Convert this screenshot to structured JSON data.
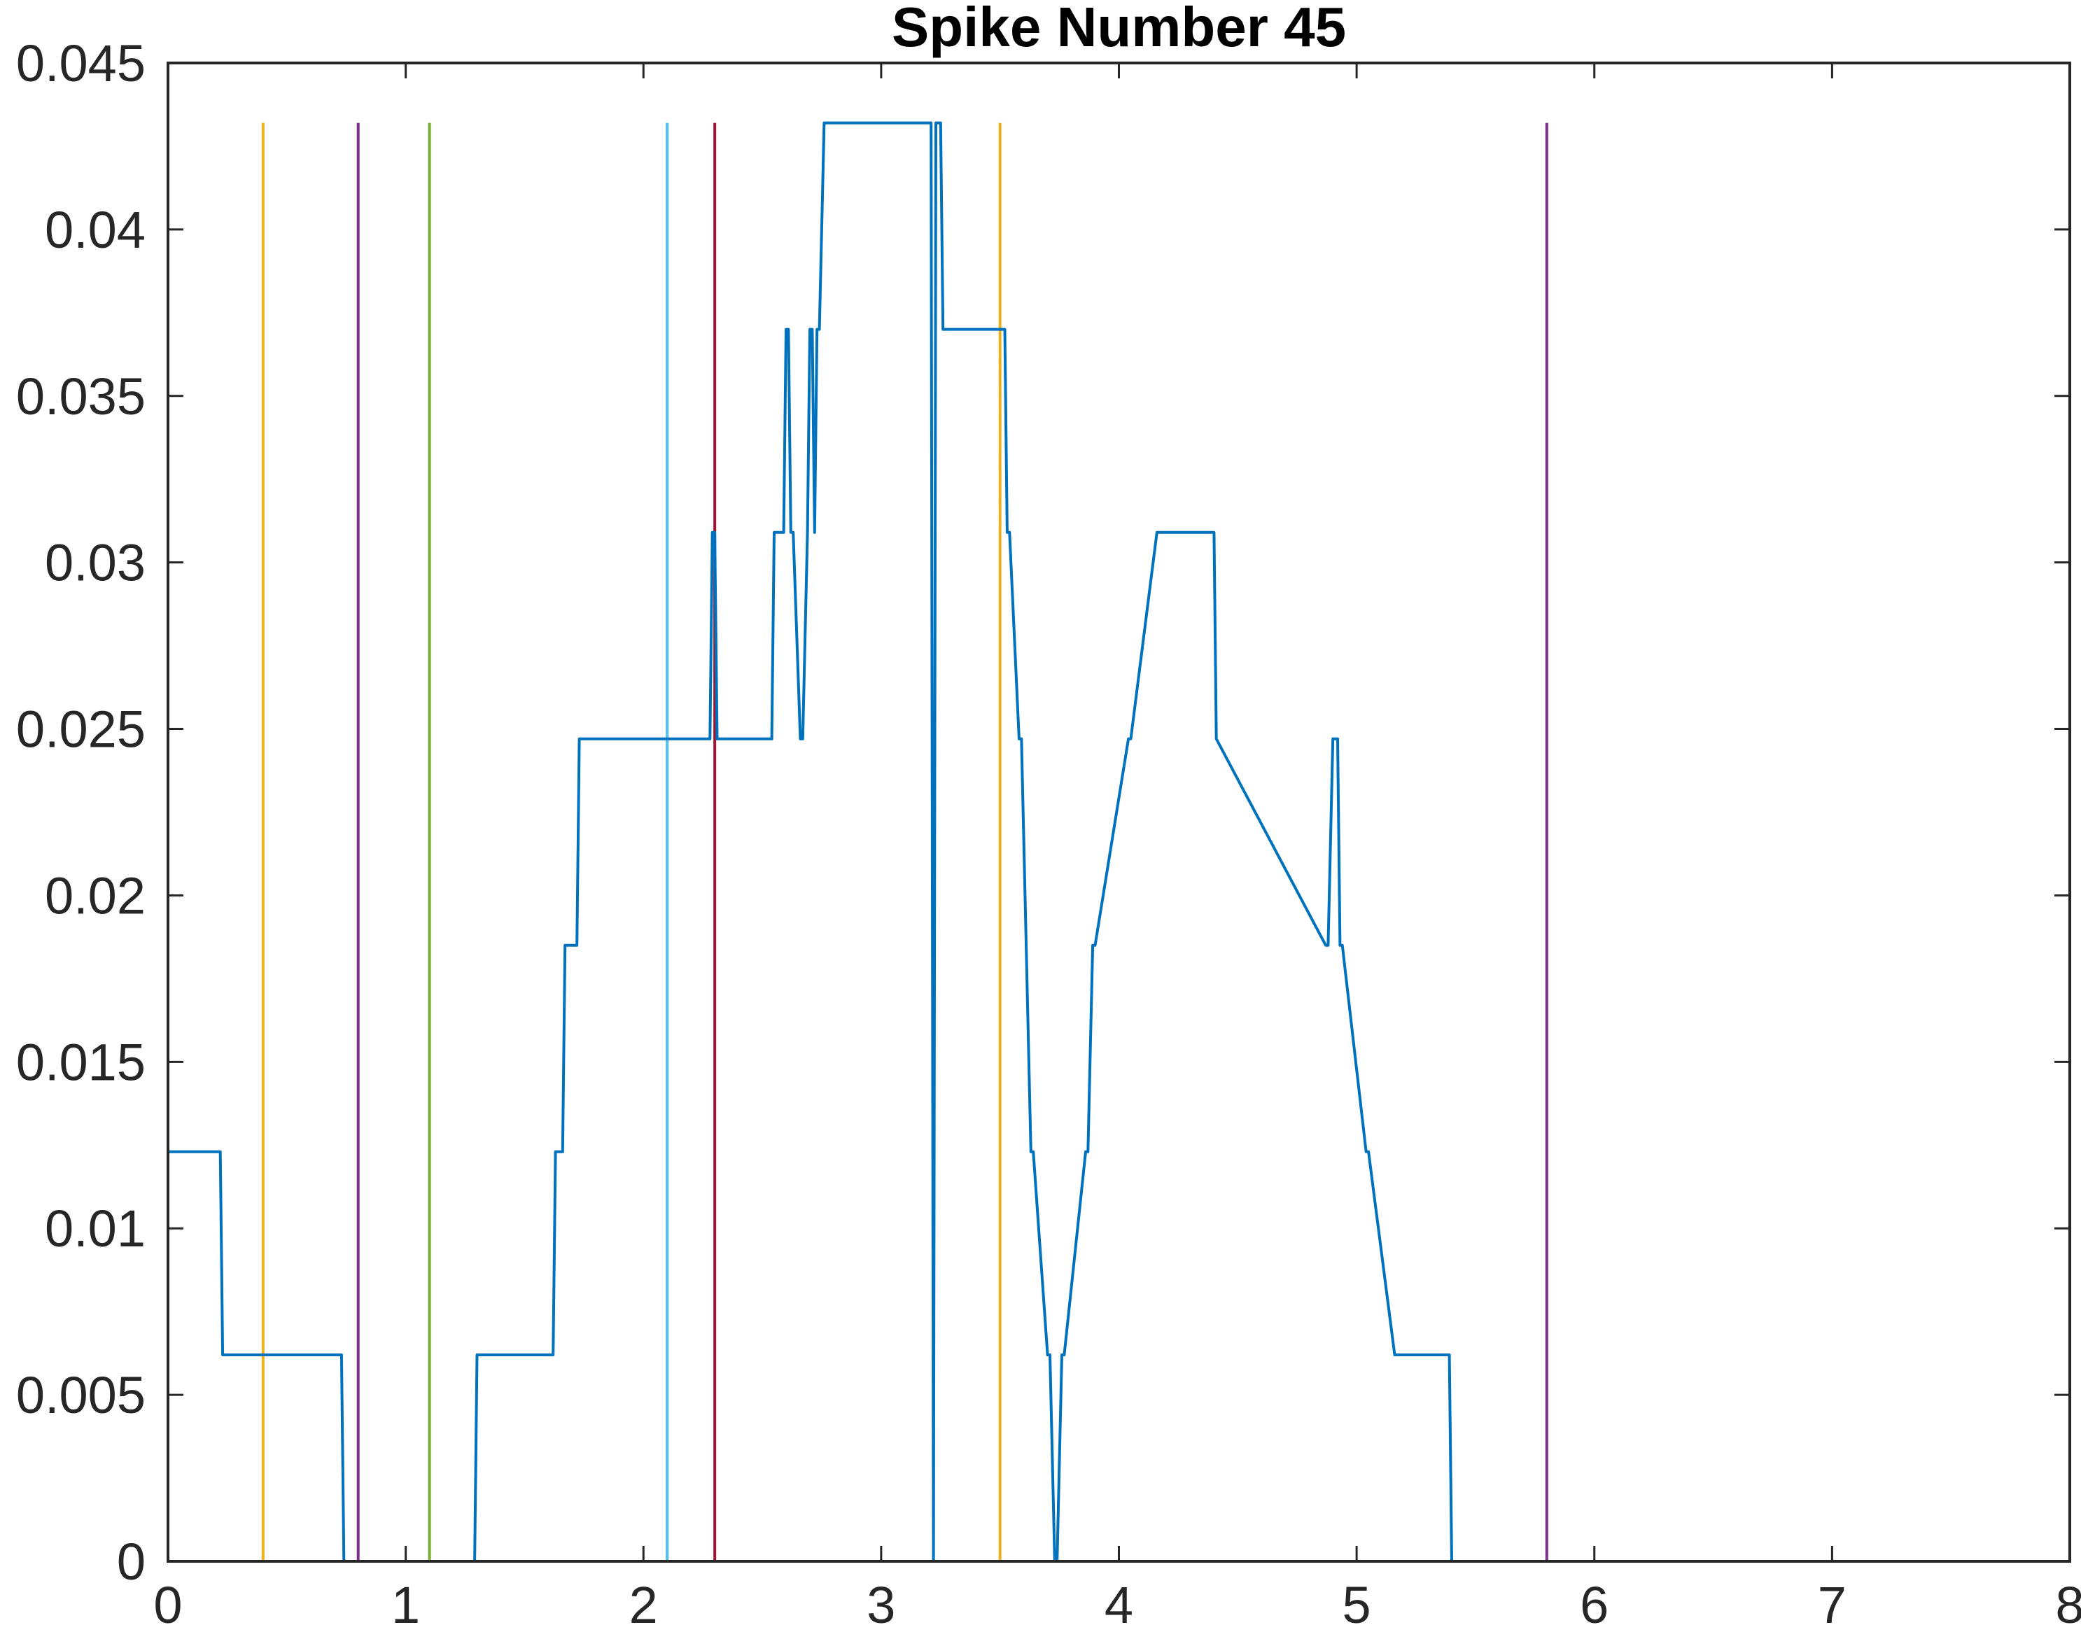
{
  "chart_data": {
    "type": "line",
    "title": "Spike Number 45",
    "xlabel": "",
    "ylabel": "",
    "xlim": [
      0,
      8
    ],
    "ylim": [
      0,
      0.045
    ],
    "xticks": [
      0,
      1,
      2,
      3,
      4,
      5,
      6,
      7,
      8
    ],
    "yticks": [
      0,
      0.005,
      0.01,
      0.015,
      0.02,
      0.025,
      0.03,
      0.035,
      0.04,
      0.045
    ],
    "xtick_labels": [
      "0",
      "1",
      "2",
      "3",
      "4",
      "5",
      "6",
      "7",
      "8"
    ],
    "ytick_labels": [
      "0",
      "0.005",
      "0.01",
      "0.015",
      "0.02",
      "0.025",
      "0.03",
      "0.035",
      "0.04",
      "0.045"
    ],
    "grid": false,
    "box": true,
    "series": [
      {
        "color": "#0072BD",
        "x": [
          0,
          0.22,
          0.23,
          0.24,
          0.73,
          0.74,
          0.75,
          1.29,
          1.3,
          1.31,
          1.62,
          1.63,
          1.66,
          1.67,
          1.68,
          1.72,
          1.73,
          1.74,
          2.28,
          2.29,
          2.3,
          2.31,
          2.32,
          2.54,
          2.55,
          2.59,
          2.6,
          2.61,
          2.62,
          2.63,
          2.66,
          2.67,
          2.69,
          2.7,
          2.71,
          2.72,
          2.73,
          2.74,
          2.76,
          2.77,
          3.21,
          3.22,
          3.23,
          3.24,
          3.25,
          3.26,
          3.27,
          3.52,
          3.53,
          3.54,
          3.58,
          3.59,
          3.63,
          3.64,
          3.7,
          3.71,
          3.73,
          3.74,
          3.76,
          3.77,
          3.86,
          3.87,
          3.89,
          3.9,
          4.04,
          4.05,
          4.16,
          4.17,
          4.4,
          4.41,
          4.87,
          4.88,
          4.9,
          4.91,
          4.92,
          4.93,
          4.94,
          5.04,
          5.05,
          5.16,
          5.17,
          5.39,
          5.4,
          5.93,
          5.94,
          7.77
        ],
        "y": [
          0.0123,
          0.0123,
          0.0062,
          0.0062,
          0.0062,
          0,
          0,
          0,
          0.0062,
          0.0062,
          0.0062,
          0.0123,
          0.0123,
          0.0185,
          0.0185,
          0.0185,
          0.0247,
          0.0247,
          0.0247,
          0.0309,
          0.0309,
          0.0247,
          0.0247,
          0.0247,
          0.0309,
          0.0309,
          0.037,
          0.037,
          0.0309,
          0.0309,
          0.0247,
          0.0247,
          0.0309,
          0.037,
          0.037,
          0.0309,
          0.037,
          0.037,
          0.0432,
          0.0432,
          0.0432,
          0,
          0.0432,
          0.0432,
          0.0432,
          0.037,
          0.037,
          0.037,
          0.0309,
          0.0309,
          0.0247,
          0.0247,
          0.0123,
          0.0123,
          0.0062,
          0.0062,
          0,
          0,
          0.0062,
          0.0062,
          0.0123,
          0.0123,
          0.0185,
          0.0185,
          0.0247,
          0.0247,
          0.0309,
          0.0309,
          0.0309,
          0.0247,
          0.0185,
          0.0185,
          0.0247,
          0.0247,
          0.0247,
          0.0185,
          0.0185,
          0.0123,
          0.0123,
          0.0062,
          0.0062,
          0.0062,
          0,
          0,
          0,
          0
        ]
      }
    ],
    "vertical_lines": [
      {
        "x": 0.0,
        "color": "#D95319"
      },
      {
        "x": 0.4,
        "color": "#EDB120"
      },
      {
        "x": 0.8,
        "color": "#7E2F8E"
      },
      {
        "x": 1.1,
        "color": "#77AC30"
      },
      {
        "x": 2.1,
        "color": "#4DBEEE"
      },
      {
        "x": 2.3,
        "color": "#A2142F"
      },
      {
        "x": 3.5,
        "color": "#EDB120"
      },
      {
        "x": 5.8,
        "color": "#7E2F8E"
      }
    ],
    "vertical_line_height": 0.0432
  }
}
